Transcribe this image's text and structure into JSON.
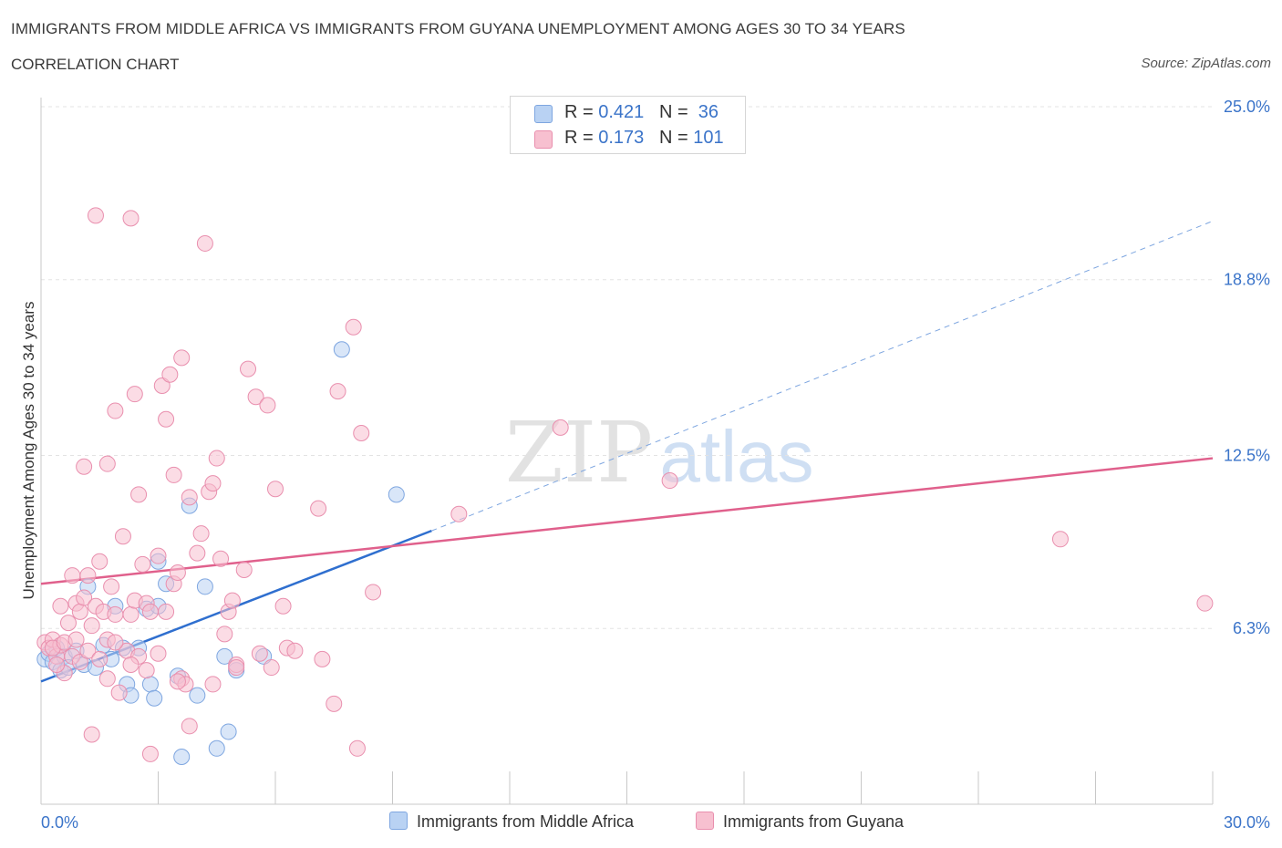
{
  "header": {
    "title": "IMMIGRANTS FROM MIDDLE AFRICA VS IMMIGRANTS FROM GUYANA UNEMPLOYMENT AMONG AGES 30 TO 34 YEARS",
    "subtitle": "CORRELATION CHART",
    "source": "Source: ZipAtlas.com"
  },
  "legend": {
    "r_label": "R =",
    "n_label": "N =",
    "rows": [
      {
        "r": "0.421",
        "n": "36"
      },
      {
        "r": "0.173",
        "n": "101"
      }
    ]
  },
  "watermark": {
    "zip": "ZIP",
    "atlas": "atlas"
  },
  "colors": {
    "blue_fill": "#b9d2f3",
    "blue_stroke": "#7ea6e0",
    "blue_line": "#2f6fcf",
    "pink_fill": "#f7c0d0",
    "pink_stroke": "#e98fae",
    "pink_line": "#e0608c",
    "axis_text": "#3b74c9",
    "grid": "#e3e3e3"
  },
  "chart_data": {
    "type": "scatter",
    "xlabel": "",
    "ylabel": "Unemployment Among Ages 30 to 34 years",
    "xlim": [
      0,
      30
    ],
    "ylim": [
      0,
      25
    ],
    "x_tick_labels": [
      "0.0%",
      "30.0%"
    ],
    "y_ticks": [
      6.3,
      12.5,
      18.8,
      25.0
    ],
    "y_tick_labels": [
      "6.3%",
      "12.5%",
      "18.8%",
      "25.0%"
    ],
    "grid": "horizontal-dashed",
    "legend_position": "top-center",
    "series": [
      {
        "name": "Immigrants from Middle Africa",
        "color": "blue",
        "r": 0.421,
        "n": 36,
        "trend": {
          "x": [
            0,
            10
          ],
          "y": [
            4.4,
            9.8
          ],
          "extended_to": [
            30,
            20.9
          ]
        },
        "points": [
          [
            0.1,
            5.2
          ],
          [
            0.2,
            5.4
          ],
          [
            0.3,
            5.1
          ],
          [
            0.4,
            5.6
          ],
          [
            0.5,
            4.8
          ],
          [
            0.6,
            5.3
          ],
          [
            0.7,
            4.9
          ],
          [
            0.9,
            5.5
          ],
          [
            1.1,
            5.0
          ],
          [
            1.2,
            7.8
          ],
          [
            1.4,
            4.9
          ],
          [
            1.6,
            5.7
          ],
          [
            1.8,
            5.2
          ],
          [
            1.9,
            7.1
          ],
          [
            2.1,
            5.6
          ],
          [
            2.2,
            4.3
          ],
          [
            2.3,
            3.9
          ],
          [
            2.5,
            5.6
          ],
          [
            2.7,
            7.0
          ],
          [
            2.8,
            4.3
          ],
          [
            2.9,
            3.8
          ],
          [
            3.0,
            7.1
          ],
          [
            3.0,
            8.7
          ],
          [
            3.2,
            7.9
          ],
          [
            3.5,
            4.6
          ],
          [
            3.6,
            1.7
          ],
          [
            3.8,
            10.7
          ],
          [
            4.0,
            3.9
          ],
          [
            4.2,
            7.8
          ],
          [
            4.5,
            2.0
          ],
          [
            4.7,
            5.3
          ],
          [
            4.8,
            2.6
          ],
          [
            5.0,
            4.8
          ],
          [
            5.7,
            5.3
          ],
          [
            7.7,
            16.3
          ],
          [
            9.1,
            11.1
          ]
        ]
      },
      {
        "name": "Immigrants from Guyana",
        "color": "pink",
        "r": 0.173,
        "n": 101,
        "trend": {
          "x": [
            0,
            30
          ],
          "y": [
            7.9,
            12.4
          ]
        },
        "points": [
          [
            0.1,
            5.8
          ],
          [
            0.2,
            5.6
          ],
          [
            0.3,
            5.9
          ],
          [
            0.4,
            5.3
          ],
          [
            0.5,
            5.7
          ],
          [
            0.5,
            7.1
          ],
          [
            0.6,
            4.7
          ],
          [
            0.7,
            6.5
          ],
          [
            0.8,
            8.2
          ],
          [
            0.9,
            7.2
          ],
          [
            1.0,
            6.9
          ],
          [
            1.1,
            7.4
          ],
          [
            1.2,
            8.2
          ],
          [
            1.3,
            6.4
          ],
          [
            1.4,
            7.1
          ],
          [
            1.5,
            8.7
          ],
          [
            1.6,
            6.9
          ],
          [
            1.7,
            5.9
          ],
          [
            1.8,
            7.8
          ],
          [
            1.9,
            6.8
          ],
          [
            2.1,
            9.6
          ],
          [
            2.2,
            5.5
          ],
          [
            2.3,
            6.8
          ],
          [
            2.4,
            7.3
          ],
          [
            2.5,
            5.3
          ],
          [
            2.6,
            8.6
          ],
          [
            2.7,
            7.2
          ],
          [
            2.8,
            6.9
          ],
          [
            3.0,
            8.9
          ],
          [
            3.2,
            6.9
          ],
          [
            3.4,
            7.9
          ],
          [
            3.5,
            8.3
          ],
          [
            3.6,
            4.5
          ],
          [
            3.7,
            4.3
          ],
          [
            3.8,
            2.8
          ],
          [
            1.1,
            12.1
          ],
          [
            1.4,
            21.1
          ],
          [
            1.7,
            12.2
          ],
          [
            1.9,
            14.1
          ],
          [
            2.4,
            14.7
          ],
          [
            2.5,
            11.1
          ],
          [
            2.3,
            21.0
          ],
          [
            2.7,
            4.8
          ],
          [
            2.8,
            1.8
          ],
          [
            1.3,
            2.5
          ],
          [
            3.1,
            15.0
          ],
          [
            3.2,
            13.8
          ],
          [
            3.3,
            15.4
          ],
          [
            3.4,
            11.8
          ],
          [
            3.6,
            16.0
          ],
          [
            3.8,
            11.0
          ],
          [
            4.0,
            9.0
          ],
          [
            4.1,
            9.7
          ],
          [
            4.2,
            20.1
          ],
          [
            4.3,
            11.2
          ],
          [
            4.4,
            11.5
          ],
          [
            4.5,
            12.4
          ],
          [
            4.6,
            8.8
          ],
          [
            4.7,
            6.1
          ],
          [
            4.8,
            6.9
          ],
          [
            4.9,
            7.3
          ],
          [
            5.0,
            5.0
          ],
          [
            5.2,
            8.4
          ],
          [
            5.3,
            15.6
          ],
          [
            5.5,
            14.6
          ],
          [
            5.6,
            5.4
          ],
          [
            5.8,
            14.3
          ],
          [
            5.9,
            4.9
          ],
          [
            6.0,
            11.3
          ],
          [
            6.2,
            7.1
          ],
          [
            6.3,
            5.6
          ],
          [
            6.5,
            5.5
          ],
          [
            7.1,
            10.6
          ],
          [
            7.2,
            5.2
          ],
          [
            7.5,
            3.6
          ],
          [
            7.6,
            14.8
          ],
          [
            8.0,
            17.1
          ],
          [
            8.1,
            2.0
          ],
          [
            8.2,
            13.3
          ],
          [
            8.5,
            7.6
          ],
          [
            10.7,
            10.4
          ],
          [
            13.3,
            13.5
          ],
          [
            16.1,
            11.6
          ],
          [
            26.1,
            9.5
          ],
          [
            29.8,
            7.2
          ],
          [
            0.3,
            5.6
          ],
          [
            0.6,
            5.8
          ],
          [
            0.8,
            5.3
          ],
          [
            1.0,
            5.1
          ],
          [
            1.2,
            5.5
          ],
          [
            1.5,
            5.2
          ],
          [
            1.7,
            4.5
          ],
          [
            1.9,
            5.8
          ],
          [
            2.0,
            4.0
          ],
          [
            2.3,
            5.0
          ],
          [
            3.0,
            5.4
          ],
          [
            3.5,
            4.4
          ],
          [
            4.4,
            4.3
          ],
          [
            5.0,
            4.9
          ],
          [
            0.4,
            5.0
          ],
          [
            0.9,
            5.9
          ]
        ]
      }
    ]
  },
  "bottom_legend": {
    "items": [
      "Immigrants from Middle Africa",
      "Immigrants from Guyana"
    ]
  }
}
